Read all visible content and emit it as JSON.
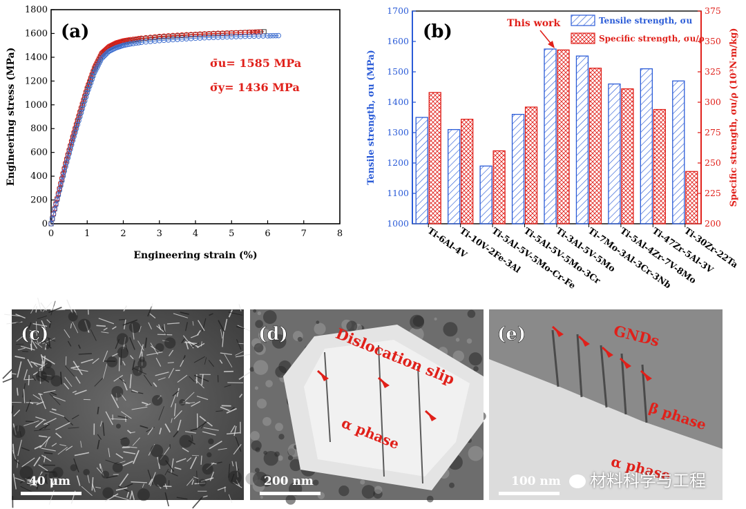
{
  "panels": {
    "a": "(a)",
    "b": "(b)",
    "c": "(c)",
    "d": "(d)",
    "e": "(e)"
  },
  "chart_data": [
    {
      "type": "line",
      "panel": "(a)",
      "xlabel": "Engineering strain (%)",
      "ylabel": "Engineering stress (MPa)",
      "xlim": [
        0,
        8
      ],
      "ylim": [
        0,
        1800
      ],
      "xticks": [
        0,
        1,
        2,
        3,
        4,
        5,
        6,
        7,
        8
      ],
      "yticks": [
        0,
        200,
        400,
        600,
        800,
        1000,
        1200,
        1400,
        1600,
        1800
      ],
      "grid": false,
      "annotations": [
        {
          "text": "σ̄u= 1585 MPa",
          "color": "#e0201a"
        },
        {
          "text": "σ̄y= 1436 MPa",
          "color": "#e0201a"
        }
      ],
      "series": [
        {
          "marker": "square",
          "color": "#333333",
          "x": [
            0,
            0.2,
            0.4,
            0.6,
            0.8,
            1.0,
            1.2,
            1.4,
            1.6,
            1.8,
            2.0,
            2.2,
            2.5,
            3.0,
            3.5,
            4.0,
            4.5,
            5.0,
            5.5,
            5.9
          ],
          "y": [
            0,
            250,
            500,
            720,
            930,
            1130,
            1300,
            1420,
            1480,
            1510,
            1530,
            1540,
            1555,
            1570,
            1580,
            1590,
            1597,
            1603,
            1610,
            1615
          ]
        },
        {
          "marker": "circle",
          "color": "#e0201a",
          "x": [
            0,
            0.2,
            0.4,
            0.6,
            0.8,
            1.0,
            1.2,
            1.4,
            1.6,
            1.8,
            2.0,
            2.2,
            2.5,
            3.0,
            3.5,
            4.0,
            4.5,
            5.0,
            5.5,
            5.8
          ],
          "y": [
            0,
            255,
            510,
            735,
            945,
            1145,
            1315,
            1435,
            1490,
            1520,
            1538,
            1548,
            1560,
            1575,
            1585,
            1593,
            1600,
            1605,
            1610,
            1612
          ]
        },
        {
          "marker": "circle",
          "color": "#3f6fd0",
          "x": [
            0,
            0.2,
            0.4,
            0.6,
            0.8,
            1.0,
            1.2,
            1.4,
            1.6,
            1.8,
            2.0,
            2.2,
            2.5,
            3.0,
            3.5,
            4.0,
            4.5,
            5.0,
            5.5,
            6.0,
            6.3
          ],
          "y": [
            0,
            240,
            480,
            700,
            900,
            1100,
            1270,
            1390,
            1450,
            1480,
            1500,
            1512,
            1525,
            1540,
            1550,
            1560,
            1567,
            1572,
            1577,
            1580,
            1582
          ]
        }
      ]
    },
    {
      "type": "bar",
      "panel": "(b)",
      "categories": [
        "Ti-6Al-4V",
        "Ti-10V-2Fe-3Al",
        "Ti-5Al-5V-5Mo-Cr-Fe",
        "Ti-5Al-5V-5Mo-3Cr",
        "Ti-3Al-5V-5Mo",
        "Ti-7Mo-3Al-3Cr-3Nb",
        "Ti-5Al-4Zr-7V-8Mo",
        "Ti-47Zr-5Al-3V",
        "Ti-30Zr-22Ta"
      ],
      "ylabel": "Tensile strength, σu (MPa)",
      "y2label": "Specific strength, σu/ρ (10³N·m/kg)",
      "ylim": [
        1000,
        1700
      ],
      "y2lim": [
        200,
        375
      ],
      "yticks": [
        1000,
        1100,
        1200,
        1300,
        1400,
        1500,
        1600,
        1700
      ],
      "y2ticks": [
        200,
        225,
        250,
        275,
        300,
        325,
        350,
        375
      ],
      "legend": "top-right",
      "annotation": "This work",
      "series": [
        {
          "name": "Tensile strength, σu",
          "color": "#2a5bd7",
          "axis": "left",
          "values": [
            1350,
            1310,
            1190,
            1360,
            1575,
            1552,
            1460,
            1510,
            1470
          ]
        },
        {
          "name": "Specific strength, σu/ρ",
          "color": "#e0201a",
          "axis": "right",
          "values": [
            308,
            286,
            260,
            296,
            343,
            328,
            311,
            294,
            243
          ]
        }
      ]
    }
  ],
  "micrographs": {
    "c": {
      "scalebar": "40 μm"
    },
    "d": {
      "scalebar": "200 nm",
      "labels": [
        "Dislocation slip",
        "α phase"
      ]
    },
    "e": {
      "scalebar": "100 nm",
      "labels": [
        "GNDs",
        "β phase",
        "α phase"
      ]
    }
  },
  "watermark": "材料科学与工程"
}
